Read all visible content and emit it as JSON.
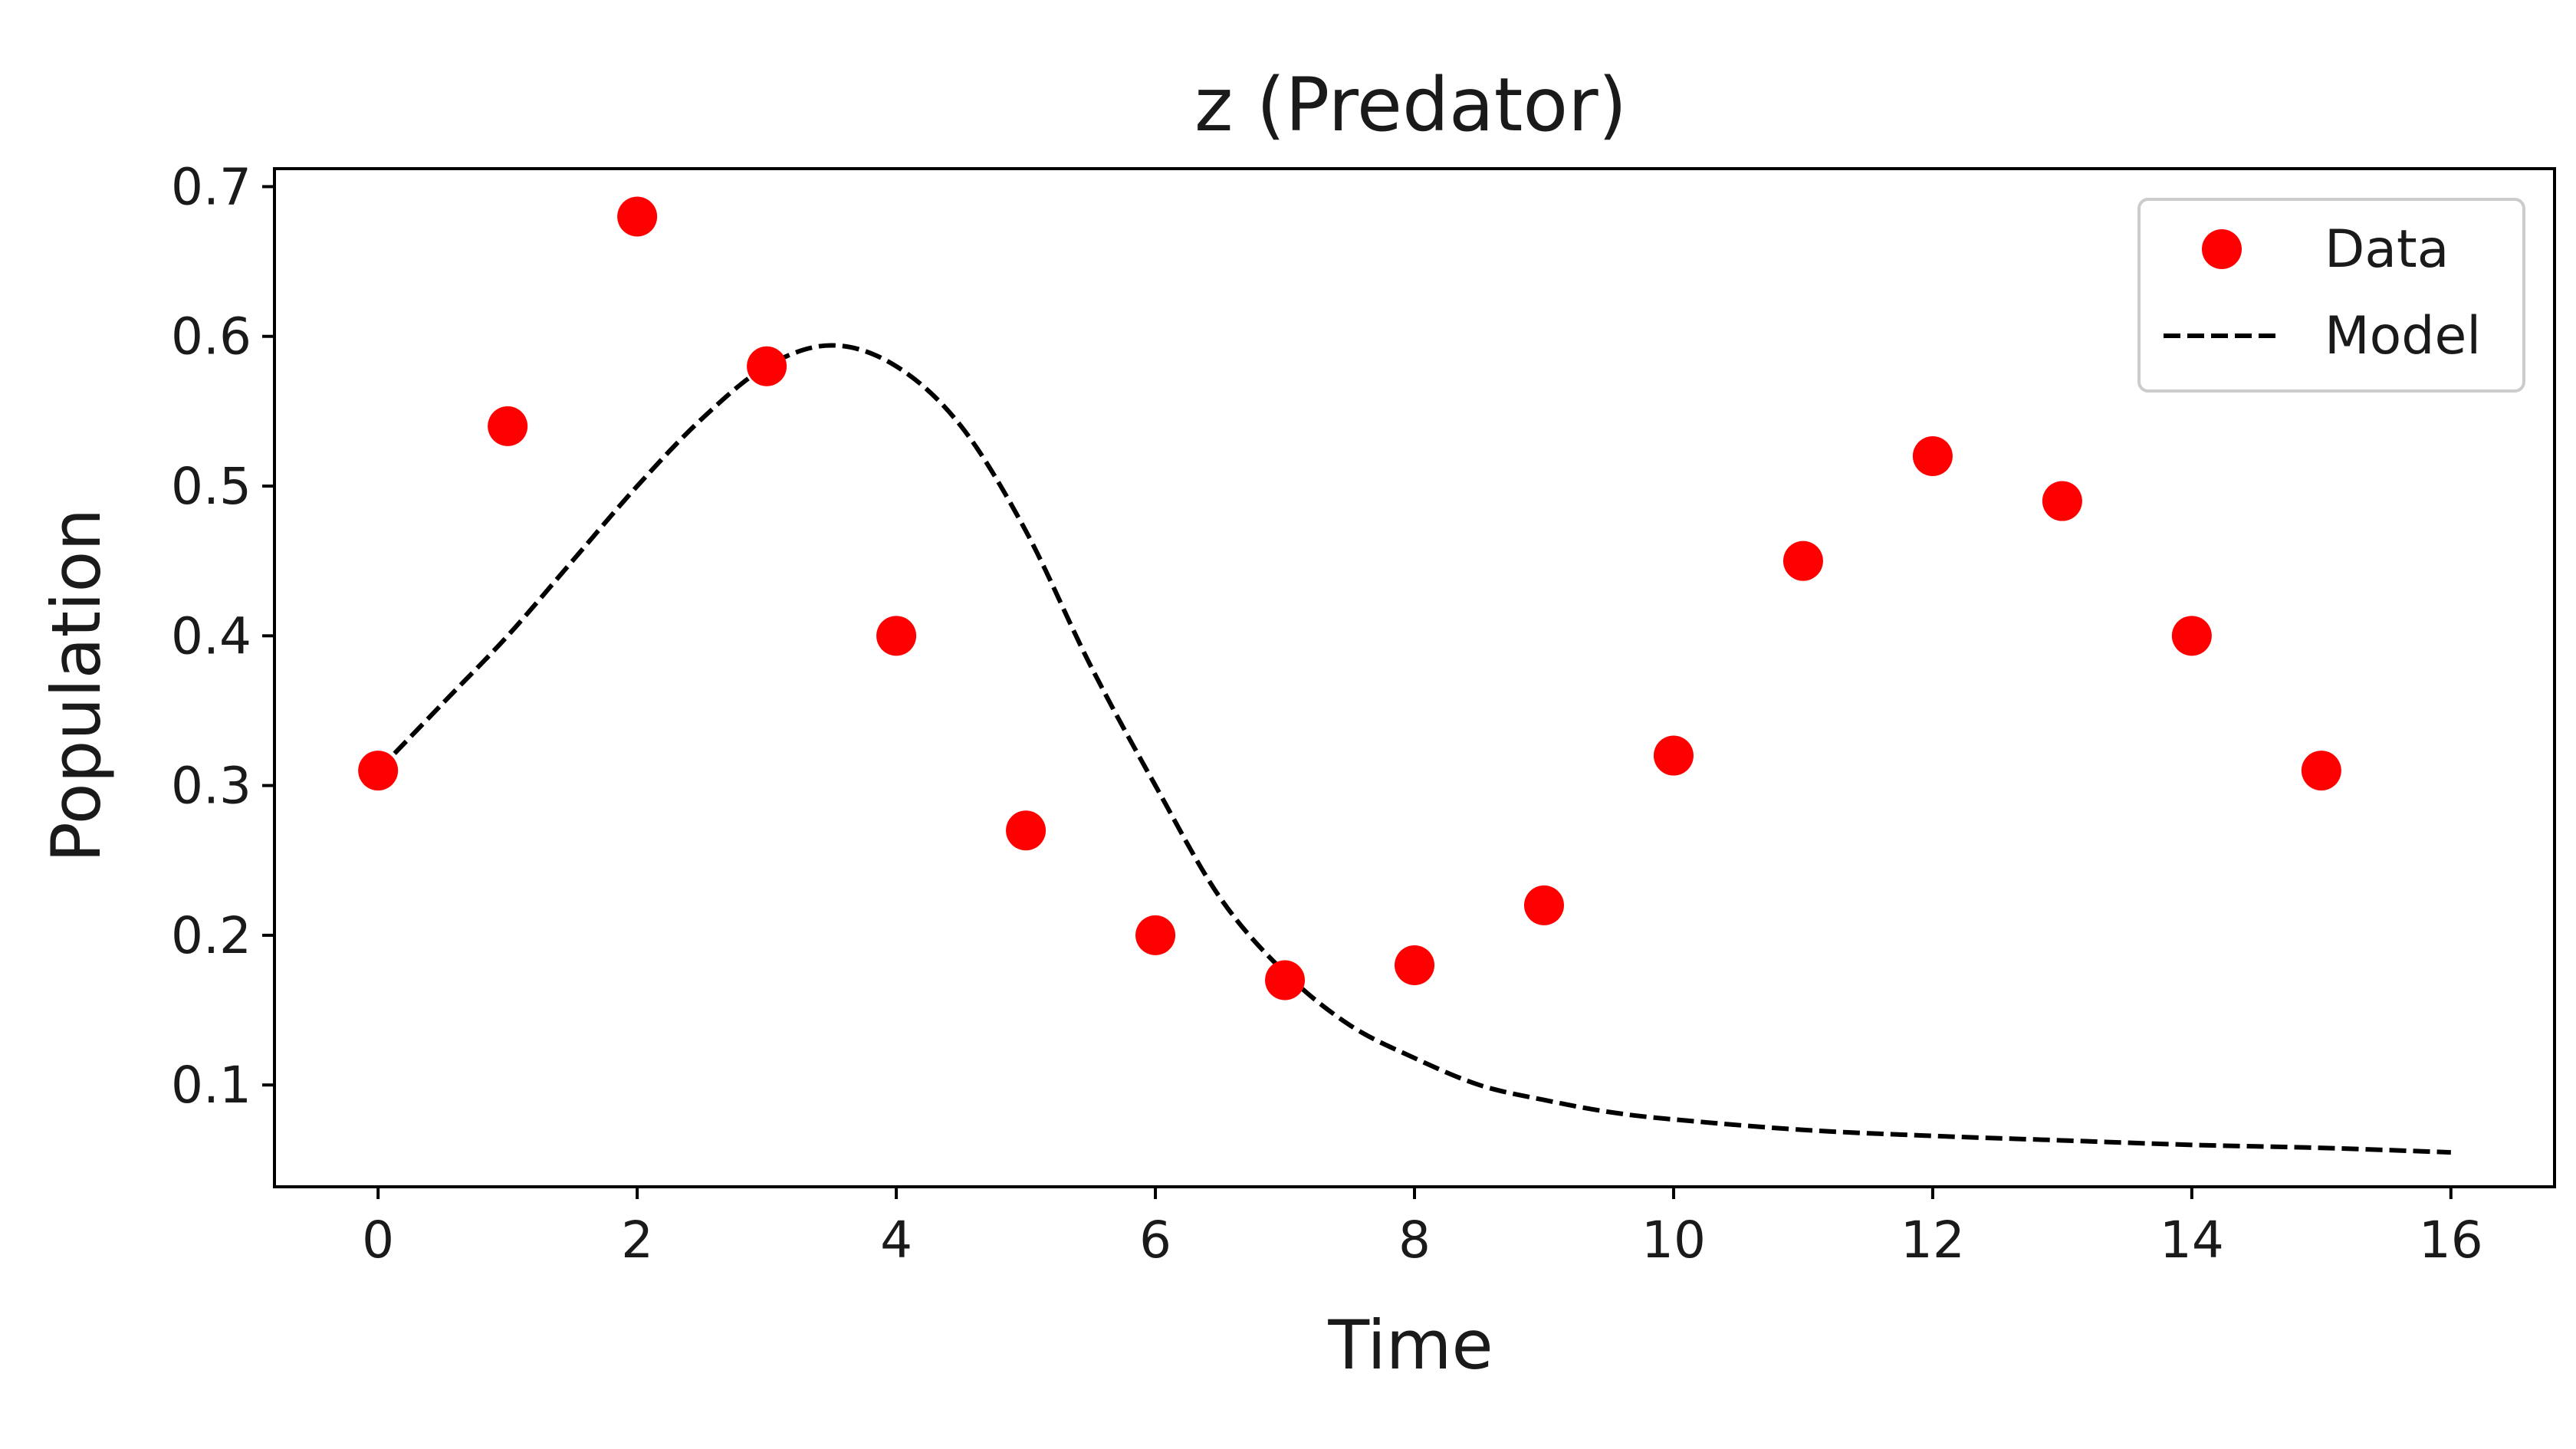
{
  "chart_data": {
    "type": "scatter",
    "title": "z (Predator)",
    "xlabel": "Time",
    "ylabel": "Population",
    "xlim": [
      -0.8,
      16.8
    ],
    "ylim": [
      0.032,
      0.712
    ],
    "xticks": [
      0,
      2,
      4,
      6,
      8,
      10,
      12,
      14,
      16
    ],
    "yticks": [
      0.1,
      0.2,
      0.3,
      0.4,
      0.5,
      0.6,
      0.7
    ],
    "grid": false,
    "legend_position": "top-right",
    "series": [
      {
        "name": "Data",
        "kind": "scatter",
        "color": "#ff0000",
        "x": [
          0,
          1,
          2,
          3,
          4,
          5,
          6,
          7,
          8,
          9,
          10,
          11,
          12,
          13,
          14,
          15
        ],
        "y": [
          0.31,
          0.54,
          0.68,
          0.58,
          0.4,
          0.27,
          0.2,
          0.17,
          0.18,
          0.22,
          0.32,
          0.45,
          0.52,
          0.49,
          0.4,
          0.31
        ]
      },
      {
        "name": "Model",
        "kind": "line",
        "style": "dashed",
        "color": "#000000",
        "x": [
          0,
          0.5,
          1,
          1.5,
          2,
          2.5,
          3,
          3.5,
          4,
          4.5,
          5,
          5.5,
          6,
          6.5,
          7,
          7.5,
          8,
          8.5,
          9,
          9.5,
          10,
          11,
          12,
          13,
          14,
          15,
          16
        ],
        "y": [
          0.31,
          0.355,
          0.4,
          0.45,
          0.5,
          0.545,
          0.58,
          0.594,
          0.58,
          0.54,
          0.47,
          0.38,
          0.3,
          0.225,
          0.175,
          0.14,
          0.118,
          0.1,
          0.09,
          0.082,
          0.077,
          0.07,
          0.066,
          0.063,
          0.06,
          0.058,
          0.055
        ]
      }
    ]
  }
}
